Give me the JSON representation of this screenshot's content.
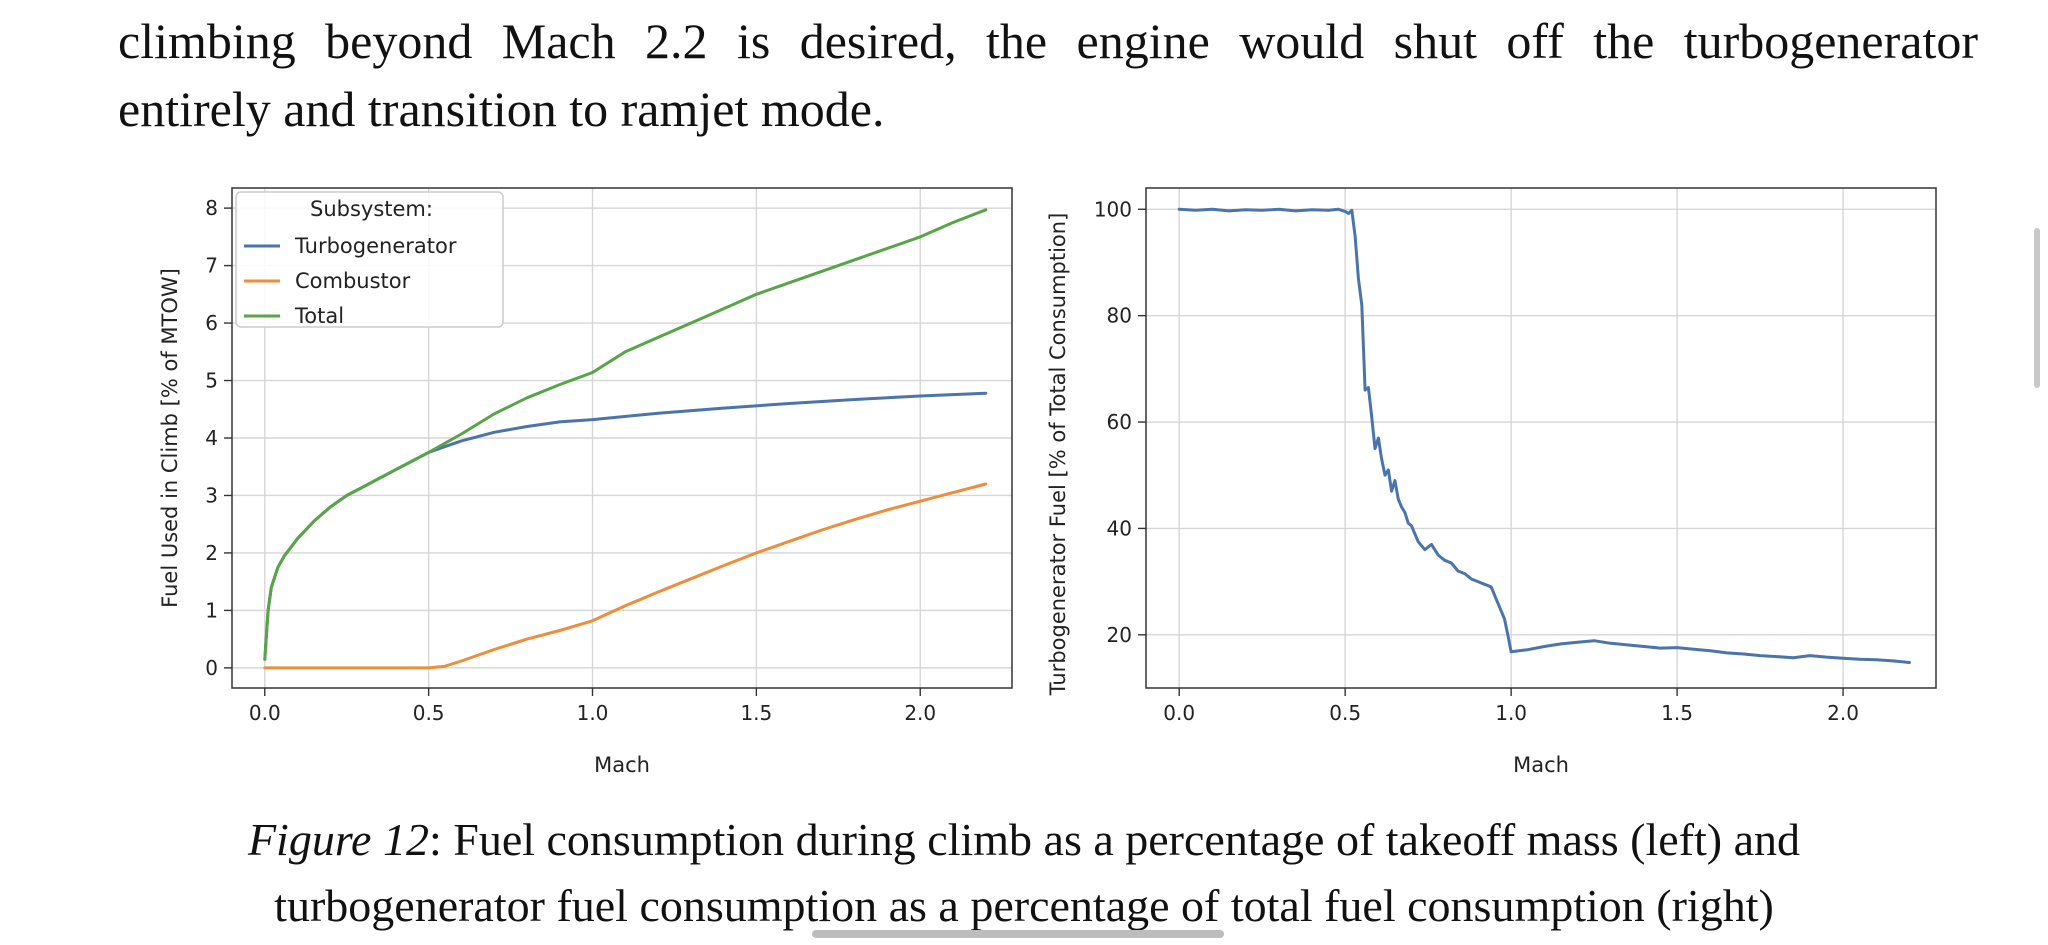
{
  "text": {
    "line1": "climbing beyond Mach 2.2 is desired, the engine would shut off the turbogenerator",
    "line2": "entirely and transition to ramjet mode."
  },
  "caption": {
    "label": "Figure 12",
    "line1_rest": ": Fuel consumption during climb as a percentage of takeoff mass (left) and",
    "line2": "turbogenerator fuel consumption as a percentage of total fuel consumption (right)"
  },
  "chart_data": [
    {
      "type": "line",
      "xlabel": "Mach",
      "ylabel": "Fuel Used in Climb [% of MTOW]",
      "xlim": [
        -0.1,
        2.28
      ],
      "ylim": [
        -0.35,
        8.35
      ],
      "xticks": [
        0.0,
        0.5,
        1.0,
        1.5,
        2.0
      ],
      "xtick_labels": [
        "0.0",
        "0.5",
        "1.0",
        "1.5",
        "2.0"
      ],
      "yticks": [
        0,
        1,
        2,
        3,
        4,
        5,
        6,
        7,
        8
      ],
      "ytick_labels": [
        "0",
        "1",
        "2",
        "3",
        "4",
        "5",
        "6",
        "7",
        "8"
      ],
      "grid": true,
      "legend": {
        "title": "Subsystem:",
        "position": "upper-left"
      },
      "series": [
        {
          "name": "Turbogenerator",
          "color": "#4a74aa",
          "x": [
            0.0,
            0.01,
            0.02,
            0.04,
            0.06,
            0.08,
            0.1,
            0.15,
            0.2,
            0.25,
            0.3,
            0.35,
            0.4,
            0.45,
            0.5,
            0.55,
            0.6,
            0.7,
            0.8,
            0.9,
            1.0,
            1.2,
            1.4,
            1.6,
            1.8,
            2.0,
            2.2
          ],
          "y": [
            0.15,
            1.0,
            1.4,
            1.75,
            1.95,
            2.1,
            2.25,
            2.55,
            2.8,
            3.0,
            3.15,
            3.3,
            3.45,
            3.6,
            3.75,
            3.85,
            3.95,
            4.1,
            4.2,
            4.28,
            4.32,
            4.43,
            4.52,
            4.6,
            4.67,
            4.73,
            4.78
          ]
        },
        {
          "name": "Combustor",
          "color": "#ee8d3a",
          "x": [
            0.0,
            0.5,
            0.55,
            0.6,
            0.7,
            0.8,
            0.9,
            1.0,
            1.1,
            1.2,
            1.3,
            1.4,
            1.5,
            1.6,
            1.7,
            1.8,
            1.9,
            2.0,
            2.1,
            2.2
          ],
          "y": [
            0.0,
            0.0,
            0.03,
            0.12,
            0.32,
            0.5,
            0.65,
            0.82,
            1.08,
            1.32,
            1.55,
            1.78,
            2.0,
            2.2,
            2.4,
            2.58,
            2.75,
            2.9,
            3.05,
            3.2
          ]
        },
        {
          "name": "Total",
          "color": "#58a447",
          "x": [
            0.0,
            0.01,
            0.02,
            0.04,
            0.06,
            0.08,
            0.1,
            0.15,
            0.2,
            0.25,
            0.3,
            0.35,
            0.4,
            0.45,
            0.5,
            0.6,
            0.7,
            0.8,
            0.9,
            1.0,
            1.1,
            1.2,
            1.3,
            1.4,
            1.5,
            1.6,
            1.7,
            1.8,
            1.9,
            2.0,
            2.1,
            2.2
          ],
          "y": [
            0.15,
            1.0,
            1.4,
            1.75,
            1.95,
            2.1,
            2.25,
            2.55,
            2.8,
            3.0,
            3.15,
            3.3,
            3.45,
            3.6,
            3.75,
            4.07,
            4.42,
            4.7,
            4.93,
            5.14,
            5.5,
            5.75,
            6.0,
            6.25,
            6.5,
            6.7,
            6.9,
            7.1,
            7.3,
            7.5,
            7.75,
            7.97
          ]
        }
      ]
    },
    {
      "type": "line",
      "xlabel": "Mach",
      "ylabel": "Turbogenerator Fuel [% of Total Consumption]",
      "xlim": [
        -0.1,
        2.28
      ],
      "ylim": [
        10,
        104
      ],
      "xticks": [
        0.0,
        0.5,
        1.0,
        1.5,
        2.0
      ],
      "xtick_labels": [
        "0.0",
        "0.5",
        "1.0",
        "1.5",
        "2.0"
      ],
      "yticks": [
        20,
        40,
        60,
        80,
        100
      ],
      "ytick_labels": [
        "20",
        "40",
        "60",
        "80",
        "100"
      ],
      "grid": true,
      "series": [
        {
          "color": "#4a74aa",
          "x": [
            0.0,
            0.05,
            0.1,
            0.15,
            0.2,
            0.25,
            0.3,
            0.35,
            0.4,
            0.45,
            0.48,
            0.5,
            0.51,
            0.52,
            0.53,
            0.54,
            0.55,
            0.56,
            0.57,
            0.58,
            0.59,
            0.6,
            0.61,
            0.62,
            0.63,
            0.64,
            0.65,
            0.66,
            0.67,
            0.68,
            0.69,
            0.7,
            0.72,
            0.74,
            0.76,
            0.78,
            0.8,
            0.82,
            0.84,
            0.86,
            0.88,
            0.9,
            0.92,
            0.94,
            0.96,
            0.98,
            0.99,
            1.0,
            1.05,
            1.1,
            1.15,
            1.2,
            1.25,
            1.3,
            1.35,
            1.4,
            1.45,
            1.5,
            1.55,
            1.6,
            1.65,
            1.7,
            1.75,
            1.8,
            1.85,
            1.9,
            1.95,
            2.0,
            2.05,
            2.1,
            2.15,
            2.2
          ],
          "y": [
            100,
            99.8,
            100,
            99.7,
            99.9,
            99.8,
            100,
            99.7,
            99.9,
            99.8,
            100,
            99.6,
            99.2,
            99.8,
            95,
            87,
            82,
            66,
            66.5,
            61,
            55,
            57,
            53,
            50,
            51,
            47,
            49,
            45.5,
            44,
            43,
            41,
            40.5,
            37.5,
            36,
            37,
            35,
            34,
            33.5,
            32,
            31.5,
            30.5,
            30,
            29.5,
            29,
            26,
            23,
            20,
            16.8,
            17.2,
            17.8,
            18.3,
            18.6,
            18.9,
            18.4,
            18.1,
            17.8,
            17.5,
            17.6,
            17.3,
            17.0,
            16.6,
            16.4,
            16.1,
            15.9,
            15.7,
            16.1,
            15.8,
            15.6,
            15.4,
            15.3,
            15.1,
            14.8
          ]
        }
      ]
    }
  ]
}
